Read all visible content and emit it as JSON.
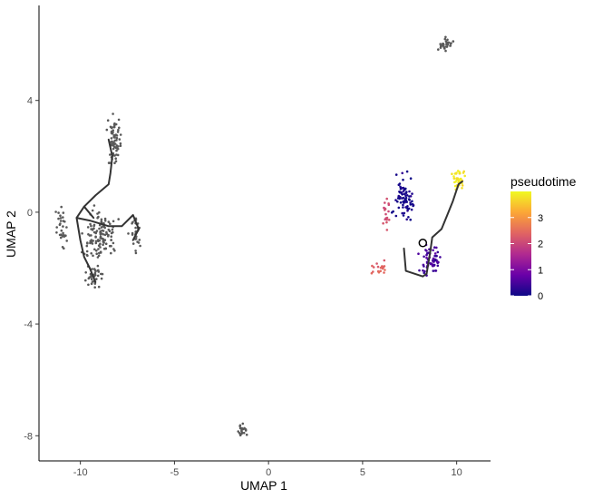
{
  "chart_data": {
    "type": "scatter",
    "title": "",
    "xlabel": "UMAP 1",
    "ylabel": "UMAP 2",
    "xlim": [
      -12.2,
      11.8
    ],
    "ylim": [
      -8.9,
      7.4
    ],
    "x_ticks": [
      -10,
      -5,
      0,
      5,
      10
    ],
    "x_tick_labels": [
      "-10",
      "-5",
      "0",
      "5",
      "10"
    ],
    "y_ticks": [
      -8,
      -4,
      0,
      4
    ],
    "y_tick_labels": [
      "-8",
      "-4",
      "0",
      "4"
    ],
    "grid": false,
    "legend": {
      "title": "pseudotime",
      "position": "right",
      "range": [
        0,
        4
      ],
      "ticks": [
        0,
        1,
        2,
        3
      ],
      "tick_labels": [
        "0",
        "1",
        "2",
        "3"
      ],
      "colors": [
        "#0d0887",
        "#6a00a8",
        "#b12a90",
        "#e16462",
        "#fca636",
        "#f0f921"
      ]
    },
    "unassigned_color": "#595959",
    "trajectory_color": "#333333",
    "clusters": [
      {
        "cx": -9.0,
        "cy": -0.8,
        "spread": [
          0.9,
          1.0
        ],
        "count": 120,
        "pseudotime": null
      },
      {
        "cx": -8.2,
        "cy": 2.6,
        "spread": [
          0.4,
          1.0
        ],
        "count": 70,
        "pseudotime": null
      },
      {
        "cx": -9.3,
        "cy": -2.3,
        "spread": [
          0.45,
          0.4
        ],
        "count": 35,
        "pseudotime": null
      },
      {
        "cx": -7.1,
        "cy": -0.8,
        "spread": [
          0.3,
          0.6
        ],
        "count": 30,
        "pseudotime": null
      },
      {
        "cx": -11.0,
        "cy": -0.6,
        "spread": [
          0.3,
          0.8
        ],
        "count": 30,
        "pseudotime": null
      },
      {
        "cx": 9.4,
        "cy": 6.0,
        "spread": [
          0.45,
          0.4
        ],
        "count": 30,
        "pseudotime": null
      },
      {
        "cx": -1.4,
        "cy": -7.8,
        "spread": [
          0.3,
          0.25
        ],
        "count": 20,
        "pseudotime": null
      },
      {
        "cx": 7.2,
        "cy": 0.6,
        "spread": [
          0.55,
          0.9
        ],
        "count": 80,
        "pseudotime": 0.1
      },
      {
        "cx": 8.6,
        "cy": -1.8,
        "spread": [
          0.7,
          0.6
        ],
        "count": 70,
        "pseudotime": 0.5
      },
      {
        "cx": 6.3,
        "cy": -0.1,
        "spread": [
          0.25,
          0.5
        ],
        "count": 18,
        "pseudotime": 2.1
      },
      {
        "cx": 5.9,
        "cy": -2.0,
        "spread": [
          0.4,
          0.25
        ],
        "count": 18,
        "pseudotime": 2.4
      },
      {
        "cx": 10.1,
        "cy": 1.2,
        "spread": [
          0.35,
          0.5
        ],
        "count": 40,
        "pseudotime": 3.8
      }
    ],
    "trajectory": [
      [
        [
          -8.5,
          2.6
        ],
        [
          -8.3,
          2.0
        ],
        [
          -8.4,
          1.4
        ],
        [
          -8.5,
          1.0
        ],
        [
          -9.2,
          0.6
        ],
        [
          -9.8,
          0.2
        ],
        [
          -10.2,
          -0.2
        ],
        [
          -10.0,
          -1.0
        ],
        [
          -9.8,
          -1.6
        ],
        [
          -9.5,
          -2.0
        ],
        [
          -9.2,
          -2.5
        ]
      ],
      [
        [
          -10.2,
          -0.2
        ],
        [
          -9.5,
          -0.3
        ],
        [
          -8.5,
          -0.5
        ],
        [
          -7.8,
          -0.5
        ],
        [
          -7.2,
          -0.1
        ],
        [
          -6.9,
          -0.6
        ],
        [
          -7.2,
          -1.0
        ]
      ],
      [
        [
          -9.8,
          0.2
        ],
        [
          -9.3,
          -0.2
        ]
      ],
      [
        [
          7.2,
          -1.3
        ],
        [
          7.3,
          -2.1
        ],
        [
          8.2,
          -2.3
        ],
        [
          8.4,
          -2.2
        ],
        [
          8.6,
          -1.4
        ],
        [
          8.7,
          -0.9
        ],
        [
          9.2,
          -0.6
        ],
        [
          9.5,
          -0.1
        ],
        [
          9.8,
          0.4
        ],
        [
          10.1,
          1.0
        ],
        [
          10.3,
          1.1
        ]
      ]
    ],
    "root_node": [
      8.2,
      -1.1
    ]
  }
}
